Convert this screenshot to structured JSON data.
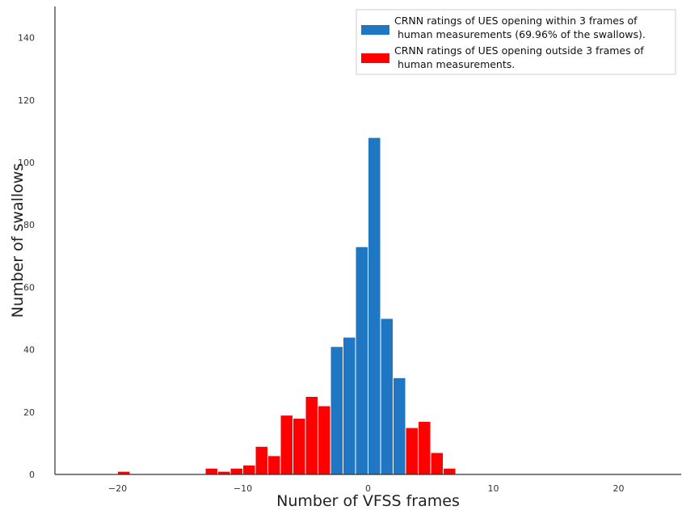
{
  "chart_data": {
    "type": "bar",
    "title": "",
    "xlabel": "Number of VFSS frames",
    "ylabel": "Number of swallows",
    "xlim": [
      -25,
      25
    ],
    "ylim": [
      0,
      150
    ],
    "xticks": [
      -20,
      -10,
      0,
      10,
      20
    ],
    "yticks": [
      0,
      20,
      40,
      60,
      80,
      100,
      120,
      140
    ],
    "grid": false,
    "legend_position": "top-right",
    "bin_width": 1,
    "series": [
      {
        "name": "CRNN ratings of UES opening within 3 frames of human measurements (69.96% of the swallows).",
        "legend_lines": [
          "CRNN ratings of UES opening within 3 frames of",
          " human measurements (69.96% of the swallows)."
        ],
        "color": "#1f77c4",
        "bin_left": [
          -3,
          -2,
          -1,
          0,
          1,
          2
        ],
        "values": [
          41,
          44,
          73,
          108,
          50,
          31
        ]
      },
      {
        "name": "CRNN ratings of UES opening outside 3 frames of human measurements.",
        "legend_lines": [
          "CRNN ratings of UES opening outside 3 frames of",
          " human measurements."
        ],
        "color": "#ff0000",
        "bin_left": [
          -20,
          -13,
          -12,
          -11,
          -10,
          -9,
          -8,
          -7,
          -6,
          -5,
          -4,
          3,
          4,
          5,
          6,
          12
        ],
        "values": [
          1,
          2,
          1,
          2,
          3,
          9,
          6,
          19,
          18,
          25,
          22,
          15,
          17,
          7,
          2,
          0
        ]
      }
    ]
  }
}
